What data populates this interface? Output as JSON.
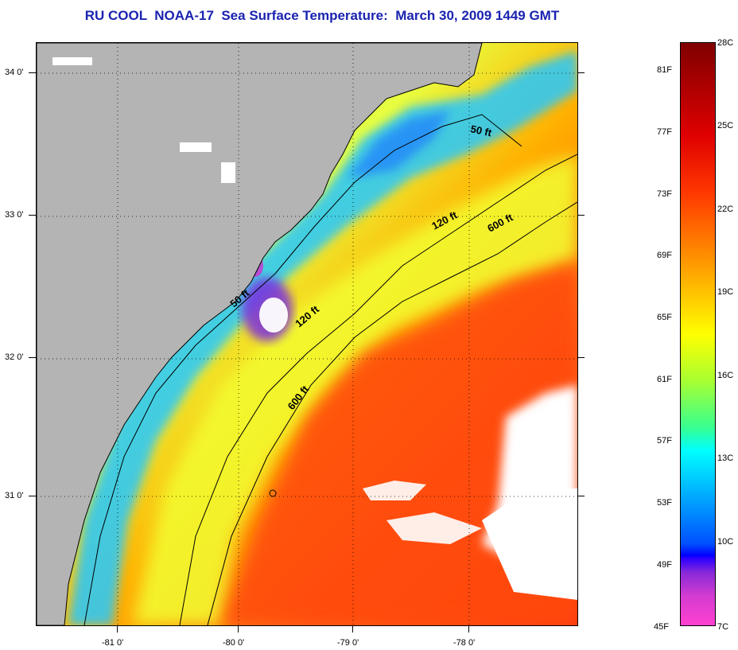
{
  "title": "RU COOL  NOAA-17  Sea Surface Temperature:  March 30, 2009 1449 GMT",
  "lat_labels": [
    "34 0'",
    "33 0'",
    "32 0'",
    "31 0'"
  ],
  "lon_labels": [
    "-81 0'",
    "-80 0'",
    "-79 0'",
    "-78 0'"
  ],
  "contour_labels": {
    "c50a": "50 ft",
    "c50b": "50 ft",
    "c120a": "120 ft",
    "c120b": "120 ft",
    "c600a": "600 ft",
    "c600b": "600 ft"
  },
  "colorbar": {
    "fahrenheit": [
      "81F",
      "77F",
      "73F",
      "69F",
      "65F",
      "61F",
      "57F",
      "53F",
      "49F",
      "45F"
    ],
    "celsius": [
      "28C",
      "25C",
      "22C",
      "19C",
      "16C",
      "13C",
      "10C",
      "7C"
    ]
  },
  "colors": {
    "title": "#1a23b0",
    "land": "#b4b4b4",
    "cloud": "#ffffff"
  }
}
